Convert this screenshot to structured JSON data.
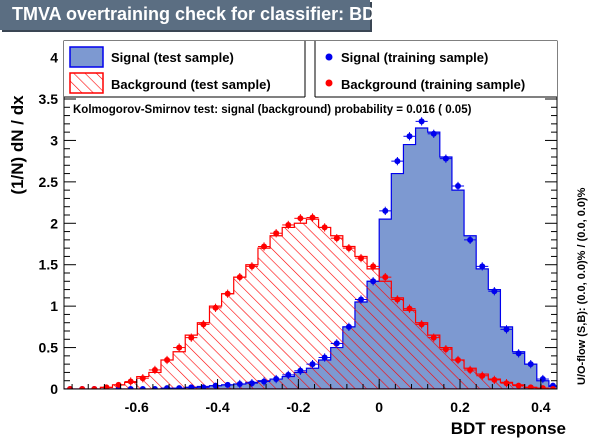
{
  "title": "TMVA overtraining check for classifier: BDT",
  "colors": {
    "signal_fill": "#7d99d1",
    "signal_line": "#0000ee",
    "background_hatch": "#ff0000",
    "title_bg": "#5b6e82"
  },
  "legend": {
    "signal_test": "Signal (test sample)",
    "signal_train": "Signal (training sample)",
    "background_test": "Background (test sample)",
    "background_train": "Background (training sample)"
  },
  "ks_text": "Kolmogorov-Smirnov test: signal (background) probability = 0.016 ( 0.05)",
  "overflow_text": "U/O-flow (S,B): (0.0, 0.0)% / (0.0, 0.0)%",
  "chart_data": {
    "type": "area",
    "xlabel": "BDT response",
    "ylabel": "(1/N) dN / dx",
    "xlim": [
      -0.78,
      0.44
    ],
    "ylim": [
      0,
      4.2
    ],
    "x_ticks": [
      "-0.6",
      "-0.4",
      "-0.2",
      "0",
      "0.2",
      "0.4"
    ],
    "x_tick_values": [
      -0.6,
      -0.4,
      -0.2,
      0,
      0.2,
      0.4
    ],
    "y_ticks": [
      "0",
      "0.5",
      "1",
      "1.5",
      "2",
      "2.5",
      "3",
      "3.5",
      "4"
    ],
    "y_tick_values": [
      0,
      0.5,
      1,
      1.5,
      2,
      2.5,
      3,
      3.5,
      4
    ],
    "bin_edges": [
      -0.78,
      -0.75,
      -0.72,
      -0.69,
      -0.66,
      -0.63,
      -0.6,
      -0.57,
      -0.54,
      -0.51,
      -0.48,
      -0.45,
      -0.42,
      -0.39,
      -0.36,
      -0.33,
      -0.3,
      -0.27,
      -0.24,
      -0.21,
      -0.18,
      -0.15,
      -0.12,
      -0.09,
      -0.06,
      -0.03,
      0.0,
      0.03,
      0.06,
      0.09,
      0.12,
      0.15,
      0.18,
      0.21,
      0.24,
      0.27,
      0.3,
      0.33,
      0.36,
      0.39,
      0.42,
      0.44
    ],
    "series": [
      {
        "name": "Signal (test sample)",
        "values": [
          0,
          0,
          0,
          0,
          0,
          0,
          0,
          0,
          0.01,
          0.01,
          0.02,
          0.03,
          0.04,
          0.05,
          0.06,
          0.08,
          0.1,
          0.12,
          0.15,
          0.2,
          0.25,
          0.35,
          0.5,
          0.75,
          1.05,
          1.3,
          2.05,
          2.6,
          2.95,
          3.15,
          3.1,
          2.8,
          2.4,
          1.85,
          1.45,
          1.2,
          0.75,
          0.45,
          0.3,
          0.1,
          0.03
        ]
      },
      {
        "name": "Signal (training sample)",
        "values": [
          0,
          0,
          0,
          0,
          0,
          0,
          0,
          0,
          0.01,
          0.01,
          0.02,
          0.02,
          0.04,
          0.05,
          0.06,
          0.07,
          0.09,
          0.12,
          0.17,
          0.22,
          0.3,
          0.38,
          0.55,
          0.75,
          1.08,
          1.3,
          2.15,
          2.75,
          3.05,
          3.23,
          3.08,
          2.78,
          2.45,
          1.8,
          1.48,
          1.18,
          0.72,
          0.43,
          0.3,
          0.12,
          0.04
        ]
      },
      {
        "name": "Background (test sample)",
        "values": [
          0,
          0,
          0,
          0.02,
          0.05,
          0.08,
          0.15,
          0.2,
          0.35,
          0.45,
          0.65,
          0.8,
          1.0,
          1.15,
          1.35,
          1.5,
          1.7,
          1.85,
          1.95,
          2.0,
          2.05,
          1.95,
          1.85,
          1.72,
          1.6,
          1.45,
          1.3,
          1.1,
          0.95,
          0.8,
          0.65,
          0.5,
          0.35,
          0.25,
          0.18,
          0.12,
          0.08,
          0.05,
          0.02,
          0.01,
          0.0
        ]
      },
      {
        "name": "Background (training sample)",
        "values": [
          0,
          0,
          0,
          0.02,
          0.05,
          0.09,
          0.13,
          0.23,
          0.35,
          0.5,
          0.62,
          0.78,
          0.98,
          1.15,
          1.35,
          1.48,
          1.72,
          1.88,
          1.98,
          2.06,
          2.07,
          1.95,
          1.82,
          1.7,
          1.58,
          1.48,
          1.35,
          1.08,
          0.97,
          0.78,
          0.62,
          0.48,
          0.35,
          0.23,
          0.16,
          0.11,
          0.07,
          0.04,
          0.02,
          0.01,
          0.0
        ]
      }
    ]
  }
}
